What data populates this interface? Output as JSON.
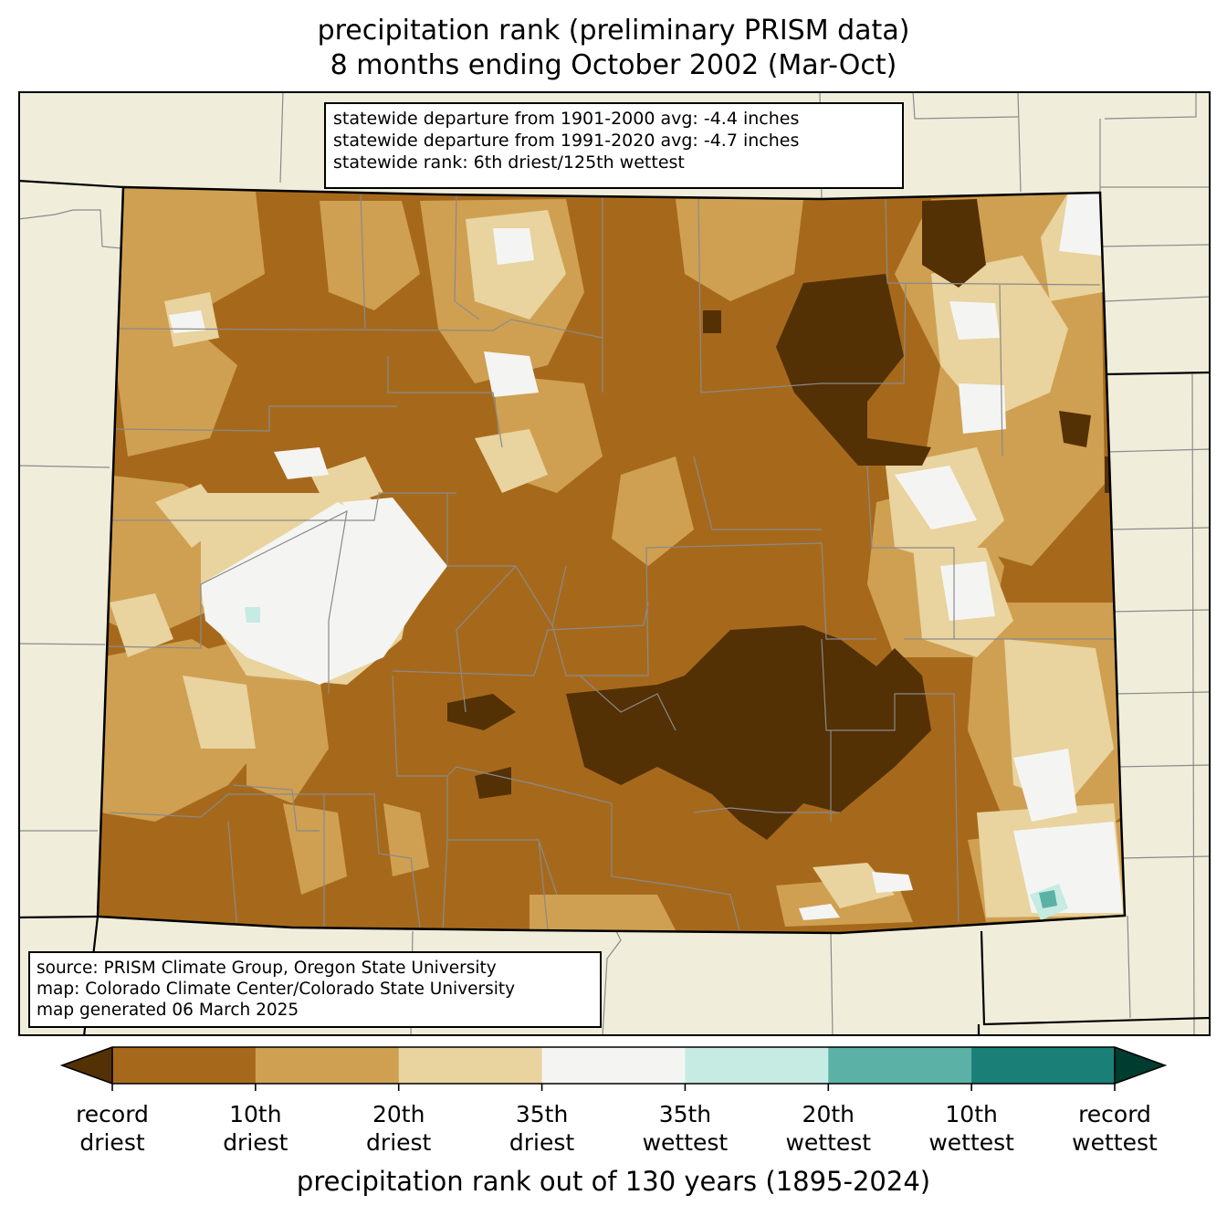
{
  "title": {
    "line1": "precipitation rank (preliminary PRISM data)",
    "line2": "8 months ending October 2002 (Mar-Oct)"
  },
  "stats": {
    "line1": "statewide departure from 1901-2000 avg: -4.4 inches",
    "line2": "statewide departure from 1991-2020 avg: -4.7 inches",
    "line3": "statewide rank: 6th driest/125th wettest"
  },
  "source": {
    "line1": "source: PRISM Climate Group, Oregon State University",
    "line2": "map: Colorado Climate Center/Colorado State University",
    "line3": "map generated 06 March 2025"
  },
  "colors": {
    "land": "#f0eedb",
    "record_driest_arrow": "#543005",
    "bin1": "#a6691c",
    "bin2": "#cfa052",
    "bin3": "#e9d39e",
    "bin4": "#f4f5f3",
    "bin5": "#c6ebe3",
    "bin6": "#5bb1a5",
    "bin7": "#1a7f76",
    "record_wettest_arrow": "#003c30"
  },
  "colorbar": {
    "ticks": [
      {
        "top": "record",
        "bottom": "driest"
      },
      {
        "top": "10th",
        "bottom": "driest"
      },
      {
        "top": "20th",
        "bottom": "driest"
      },
      {
        "top": "35th",
        "bottom": "driest"
      },
      {
        "top": "35th",
        "bottom": "wettest"
      },
      {
        "top": "20th",
        "bottom": "wettest"
      },
      {
        "top": "10th",
        "bottom": "wettest"
      },
      {
        "top": "record",
        "bottom": "wettest"
      }
    ],
    "label": "precipitation rank out of 130 years (1895-2024)"
  }
}
